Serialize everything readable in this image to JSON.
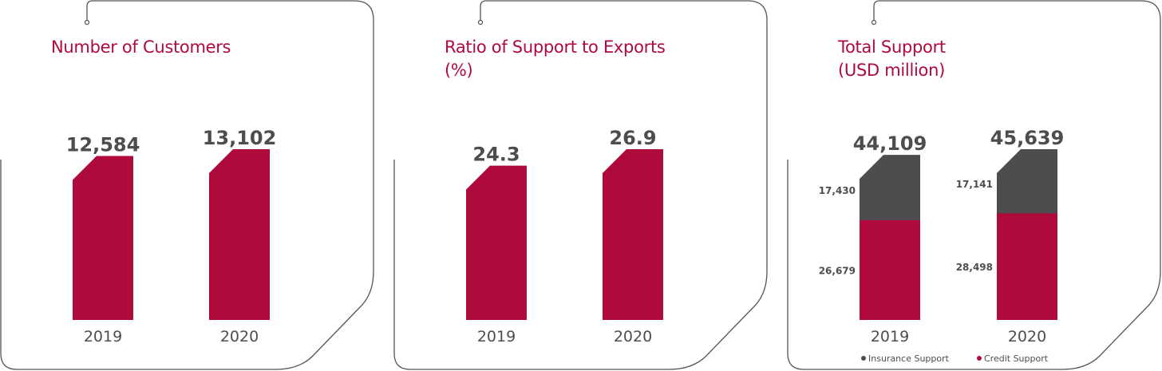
{
  "colors": {
    "accent": "#ae0a3b",
    "dark": "#4d4d4f",
    "outline": "#555555",
    "text": "#4d4d4f"
  },
  "chart_data": [
    {
      "type": "bar",
      "title": "Number of Customers",
      "subtitle": "",
      "categories": [
        "2019",
        "2020"
      ],
      "values": [
        12584,
        13102
      ],
      "value_labels": [
        "12,584",
        "13,102"
      ]
    },
    {
      "type": "bar",
      "title": "Ratio of Support to Exports",
      "subtitle": "(%)",
      "categories": [
        "2019",
        "2020"
      ],
      "values": [
        24.3,
        26.9
      ],
      "value_labels": [
        "24.3",
        "26.9"
      ]
    },
    {
      "type": "bar",
      "stacked": true,
      "title": "Total Support",
      "subtitle": "(USD million)",
      "categories": [
        "2019",
        "2020"
      ],
      "totals": [
        44109,
        45639
      ],
      "total_labels": [
        "44,109",
        "45,639"
      ],
      "series": [
        {
          "name": "Credit Support",
          "values": [
            26679,
            28498
          ],
          "labels": [
            "26,679",
            "28,498"
          ],
          "color": "#ae0a3b"
        },
        {
          "name": "Insurance Support",
          "values": [
            17430,
            17141
          ],
          "labels": [
            "17,430",
            "17,141"
          ],
          "color": "#4d4d4f"
        }
      ],
      "legend": [
        "Insurance Support",
        "Credit Support"
      ],
      "legend_position": "bottom"
    }
  ]
}
